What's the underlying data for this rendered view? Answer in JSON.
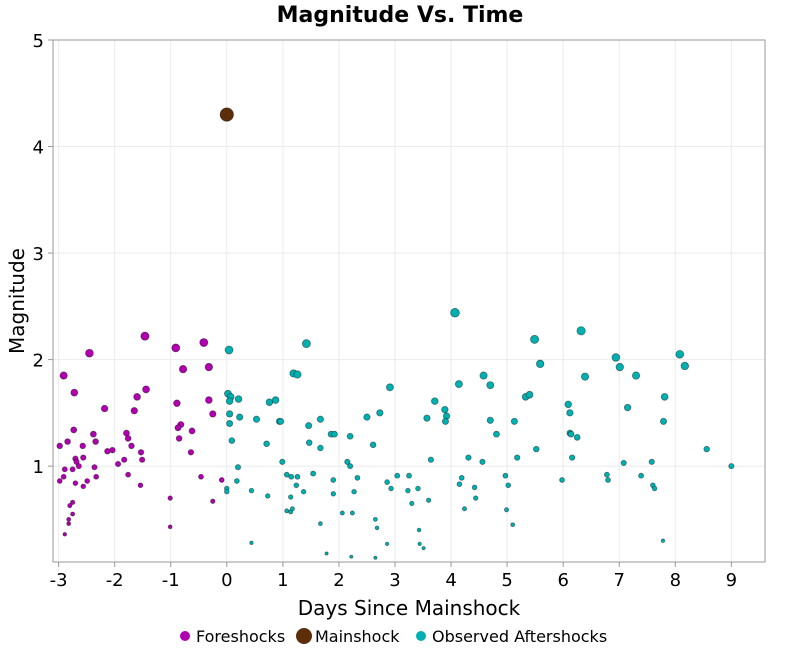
{
  "chart_data": {
    "type": "scatter",
    "title": "Magnitude Vs. Time",
    "xlabel": "Days Since Mainshock",
    "ylabel": "Magnitude",
    "xlim": [
      -3.1,
      9.6
    ],
    "ylim": [
      0.1,
      5
    ],
    "xticks": [
      -3,
      -2,
      -1,
      0,
      1,
      2,
      3,
      4,
      5,
      6,
      7,
      8,
      9
    ],
    "yticks": [
      1,
      2,
      3,
      4,
      5
    ],
    "grid": true,
    "legend_placement": "bottom",
    "marker_size_encodes": "magnitude",
    "series": [
      {
        "name": "Foreshocks",
        "color": "#b000b0",
        "points": [
          [
            -2.91,
            1.85
          ],
          [
            -2.72,
            1.69
          ],
          [
            -2.45,
            2.06
          ],
          [
            -2.18,
            1.54
          ],
          [
            -1.46,
            2.22
          ],
          [
            -1.44,
            1.72
          ],
          [
            -1.6,
            1.65
          ],
          [
            -1.65,
            1.52
          ],
          [
            -1.79,
            1.31
          ],
          [
            -1.76,
            1.26
          ],
          [
            -1.7,
            1.19
          ],
          [
            -1.83,
            1.06
          ],
          [
            -1.94,
            1.02
          ],
          [
            -2.04,
            1.15
          ],
          [
            -2.13,
            1.14
          ],
          [
            -1.76,
            0.92
          ],
          [
            -1.54,
            0.82
          ],
          [
            -1.53,
            1.13
          ],
          [
            -1.51,
            1.06
          ],
          [
            -2.38,
            1.3
          ],
          [
            -2.34,
            1.23
          ],
          [
            -2.36,
            0.99
          ],
          [
            -2.33,
            0.9
          ],
          [
            -2.49,
            0.86
          ],
          [
            -2.56,
            0.81
          ],
          [
            -2.56,
            1.08
          ],
          [
            -2.57,
            1.19
          ],
          [
            -2.73,
            1.34
          ],
          [
            -2.7,
            1.07
          ],
          [
            -2.68,
            1.04
          ],
          [
            -2.64,
            1.0
          ],
          [
            -2.75,
            0.97
          ],
          [
            -2.7,
            0.84
          ],
          [
            -2.84,
            1.23
          ],
          [
            -2.98,
            1.19
          ],
          [
            -2.89,
            0.97
          ],
          [
            -2.91,
            0.9
          ],
          [
            -2.98,
            0.86
          ],
          [
            -2.75,
            0.66
          ],
          [
            -2.8,
            0.63
          ],
          [
            -2.75,
            0.55
          ],
          [
            -2.82,
            0.5
          ],
          [
            -2.82,
            0.46
          ],
          [
            -2.89,
            0.36
          ],
          [
            -0.91,
            2.11
          ],
          [
            -0.41,
            2.16
          ],
          [
            -0.78,
            1.91
          ],
          [
            -0.32,
            1.93
          ],
          [
            -0.89,
            1.59
          ],
          [
            -0.32,
            1.62
          ],
          [
            -0.82,
            1.39
          ],
          [
            -0.62,
            1.33
          ],
          [
            -0.87,
            1.36
          ],
          [
            -0.85,
            1.26
          ],
          [
            -0.64,
            1.13
          ],
          [
            -0.25,
            1.49
          ],
          [
            -0.46,
            0.9
          ],
          [
            -0.25,
            0.67
          ],
          [
            -0.09,
            0.87
          ],
          [
            -1.01,
            0.7
          ],
          [
            -1.01,
            0.43
          ]
        ]
      },
      {
        "name": "Mainshock",
        "color": "#5c2e0a",
        "points": [
          [
            0.0,
            4.3
          ]
        ]
      },
      {
        "name": "Observed Aftershocks",
        "color": "#00b0b0",
        "points": [
          [
            0.04,
            2.09
          ],
          [
            0.02,
            1.68
          ],
          [
            0.07,
            1.65
          ],
          [
            0.21,
            1.63
          ],
          [
            0.05,
            1.61
          ],
          [
            0.05,
            1.49
          ],
          [
            0.23,
            1.46
          ],
          [
            0.05,
            1.4
          ],
          [
            0.09,
            1.24
          ],
          [
            0.18,
            0.86
          ],
          [
            0.2,
            0.99
          ],
          [
            0.0,
            0.79
          ],
          [
            0.0,
            0.76
          ],
          [
            0.44,
            0.77
          ],
          [
            0.44,
            0.28
          ],
          [
            0.53,
            1.44
          ],
          [
            0.76,
            1.6
          ],
          [
            0.87,
            1.62
          ],
          [
            0.71,
            1.21
          ],
          [
            0.73,
            0.72
          ],
          [
            0.94,
            1.42
          ],
          [
            0.96,
            1.42
          ],
          [
            0.99,
            1.04
          ],
          [
            1.07,
            0.92
          ],
          [
            1.15,
            0.9
          ],
          [
            1.19,
            1.87
          ],
          [
            1.26,
            1.86
          ],
          [
            1.26,
            0.9
          ],
          [
            1.24,
            0.82
          ],
          [
            1.14,
            0.71
          ],
          [
            1.07,
            0.58
          ],
          [
            1.14,
            0.57
          ],
          [
            1.17,
            0.6
          ],
          [
            1.37,
            0.76
          ],
          [
            1.42,
            2.15
          ],
          [
            1.46,
            1.38
          ],
          [
            1.47,
            1.22
          ],
          [
            1.54,
            0.93
          ],
          [
            1.67,
            1.44
          ],
          [
            1.67,
            1.17
          ],
          [
            1.67,
            0.46
          ],
          [
            1.86,
            1.3
          ],
          [
            1.92,
            1.3
          ],
          [
            1.9,
            0.87
          ],
          [
            1.9,
            0.74
          ],
          [
            1.78,
            0.18
          ],
          [
            2.06,
            0.56
          ],
          [
            2.15,
            1.04
          ],
          [
            2.2,
            1.28
          ],
          [
            2.2,
            1.0
          ],
          [
            2.24,
            0.56
          ],
          [
            2.27,
            0.76
          ],
          [
            2.33,
            0.89
          ],
          [
            2.22,
            0.15
          ],
          [
            2.5,
            1.46
          ],
          [
            2.61,
            1.2
          ],
          [
            2.65,
            0.5
          ],
          [
            2.68,
            0.42
          ],
          [
            2.65,
            0.14
          ],
          [
            2.73,
            1.5
          ],
          [
            2.86,
            0.85
          ],
          [
            2.86,
            0.27
          ],
          [
            2.91,
            1.74
          ],
          [
            2.93,
            0.79
          ],
          [
            3.04,
            0.91
          ],
          [
            3.23,
            0.77
          ],
          [
            3.25,
            0.91
          ],
          [
            3.3,
            0.65
          ],
          [
            3.41,
            0.79
          ],
          [
            3.43,
            0.4
          ],
          [
            3.44,
            0.27
          ],
          [
            3.51,
            0.23
          ],
          [
            3.57,
            1.45
          ],
          [
            3.6,
            0.68
          ],
          [
            3.64,
            1.06
          ],
          [
            3.71,
            1.61
          ],
          [
            3.89,
            1.53
          ],
          [
            3.92,
            1.47
          ],
          [
            3.9,
            1.42
          ],
          [
            4.07,
            2.44
          ],
          [
            4.14,
            1.77
          ],
          [
            4.15,
            0.83
          ],
          [
            4.19,
            0.89
          ],
          [
            4.24,
            0.6
          ],
          [
            4.31,
            1.08
          ],
          [
            4.42,
            0.8
          ],
          [
            4.44,
            0.7
          ],
          [
            4.56,
            1.04
          ],
          [
            4.58,
            1.85
          ],
          [
            4.7,
            1.76
          ],
          [
            4.7,
            1.43
          ],
          [
            4.81,
            1.3
          ],
          [
            4.97,
            0.91
          ],
          [
            4.99,
            0.59
          ],
          [
            5.02,
            0.82
          ],
          [
            5.1,
            0.45
          ],
          [
            5.13,
            1.42
          ],
          [
            5.18,
            1.08
          ],
          [
            5.33,
            1.65
          ],
          [
            5.4,
            1.67
          ],
          [
            5.49,
            2.19
          ],
          [
            5.52,
            1.16
          ],
          [
            5.59,
            1.96
          ],
          [
            5.98,
            0.87
          ],
          [
            6.09,
            1.58
          ],
          [
            6.12,
            1.5
          ],
          [
            6.12,
            1.31
          ],
          [
            6.14,
            1.3
          ],
          [
            6.16,
            1.08
          ],
          [
            6.25,
            1.27
          ],
          [
            6.32,
            2.27
          ],
          [
            6.39,
            1.84
          ],
          [
            6.78,
            0.92
          ],
          [
            6.8,
            0.87
          ],
          [
            6.94,
            2.02
          ],
          [
            7.01,
            1.93
          ],
          [
            7.08,
            1.03
          ],
          [
            7.15,
            1.55
          ],
          [
            7.3,
            1.85
          ],
          [
            7.39,
            0.91
          ],
          [
            7.58,
            1.04
          ],
          [
            7.6,
            0.82
          ],
          [
            7.63,
            0.79
          ],
          [
            7.78,
            0.3
          ],
          [
            7.81,
            1.65
          ],
          [
            7.79,
            1.42
          ],
          [
            8.08,
            2.05
          ],
          [
            8.17,
            1.94
          ],
          [
            8.56,
            1.16
          ],
          [
            9.0,
            1.0
          ]
        ]
      }
    ]
  }
}
